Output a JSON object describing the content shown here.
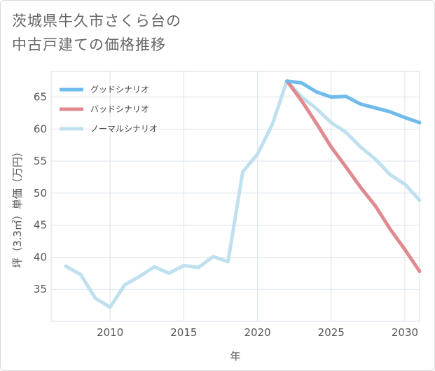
{
  "title": {
    "line1": "茨城県牛久市さくら台の",
    "line2": "中古戸建ての価格推移"
  },
  "chart_data": {
    "type": "line",
    "title": "茨城県牛久市さくら台の中古戸建ての価格推移",
    "xlabel": "年",
    "ylabel": "坪（3.3㎡）単価（万円）",
    "xlim": [
      2006,
      2031
    ],
    "ylim": [
      30,
      69
    ],
    "xticks": [
      2010,
      2015,
      2020,
      2025,
      2030
    ],
    "yticks": [
      35,
      40,
      45,
      50,
      55,
      60,
      65
    ],
    "legend_position": "top-left",
    "series": [
      {
        "name": "グッドシナリオ",
        "color": "#6fbbec",
        "x": [
          2022,
          2023,
          2024,
          2025,
          2026,
          2027,
          2028,
          2029,
          2030,
          2031
        ],
        "values": [
          67.5,
          67.2,
          65.8,
          65.0,
          65.1,
          63.9,
          63.3,
          62.7,
          61.8,
          61.0
        ]
      },
      {
        "name": "バッドシナリオ",
        "color": "#e08a8f",
        "x": [
          2022,
          2023,
          2024,
          2025,
          2026,
          2027,
          2028,
          2029,
          2030,
          2031
        ],
        "values": [
          67.5,
          64.4,
          60.9,
          57.2,
          54.1,
          50.9,
          48.0,
          44.4,
          41.2,
          37.8
        ]
      },
      {
        "name": "ノーマルシナリオ",
        "color": "#bfe0ee",
        "x": [
          2007,
          2008,
          2009,
          2010,
          2011,
          2012,
          2013,
          2014,
          2015,
          2016,
          2017,
          2018,
          2019,
          2020,
          2021,
          2022,
          2023,
          2024,
          2025,
          2026,
          2027,
          2028,
          2029,
          2030,
          2031
        ],
        "values": [
          38.6,
          37.3,
          33.6,
          32.2,
          35.7,
          37.0,
          38.5,
          37.5,
          38.7,
          38.4,
          40.1,
          39.3,
          53.3,
          56.1,
          60.7,
          67.5,
          65.0,
          63.2,
          61.0,
          59.5,
          57.2,
          55.3,
          52.9,
          51.4,
          48.9
        ]
      }
    ]
  }
}
